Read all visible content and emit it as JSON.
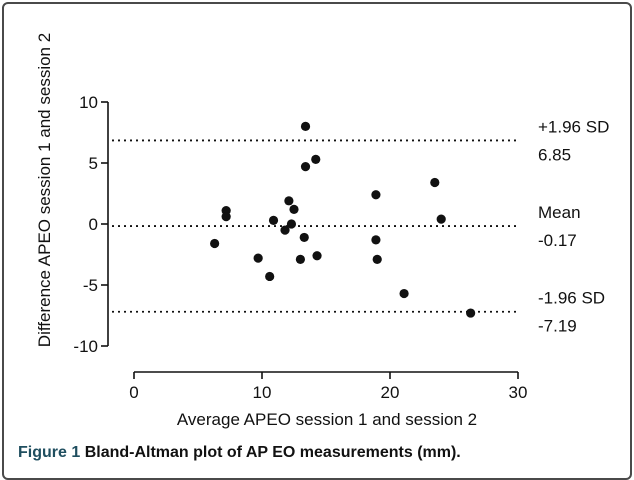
{
  "chart_data": {
    "type": "scatter",
    "xlabel": "Average APEO session 1 and session 2",
    "ylabel": "Difference APEO session 1 and session 2",
    "xlim": [
      0,
      30
    ],
    "ylim": [
      -10,
      10
    ],
    "xticks": [
      0,
      10,
      20,
      30
    ],
    "yticks": [
      -10,
      -5,
      0,
      5,
      10
    ],
    "grid": false,
    "reference_lines": [
      {
        "y": 6.85,
        "label_top": "+1.96 SD",
        "label_bottom": "6.85"
      },
      {
        "y": -0.17,
        "label_top": "Mean",
        "label_bottom": "-0.17"
      },
      {
        "y": -7.19,
        "label_top": "-1.96 SD",
        "label_bottom": "-7.19"
      }
    ],
    "points": [
      {
        "x": 6.3,
        "y": -1.6
      },
      {
        "x": 7.2,
        "y": 1.1
      },
      {
        "x": 7.2,
        "y": 0.6
      },
      {
        "x": 9.7,
        "y": -2.8
      },
      {
        "x": 10.6,
        "y": -4.3
      },
      {
        "x": 10.9,
        "y": 0.3
      },
      {
        "x": 11.8,
        "y": -0.5
      },
      {
        "x": 12.1,
        "y": 1.9
      },
      {
        "x": 12.3,
        "y": 0.0
      },
      {
        "x": 12.5,
        "y": 1.2
      },
      {
        "x": 13.0,
        "y": -2.9
      },
      {
        "x": 13.3,
        "y": -1.1
      },
      {
        "x": 13.4,
        "y": 4.7
      },
      {
        "x": 13.4,
        "y": 8.0
      },
      {
        "x": 14.2,
        "y": 5.3
      },
      {
        "x": 14.3,
        "y": -2.6
      },
      {
        "x": 18.9,
        "y": 2.4
      },
      {
        "x": 18.9,
        "y": -1.3
      },
      {
        "x": 19.0,
        "y": -2.9
      },
      {
        "x": 21.1,
        "y": -5.7
      },
      {
        "x": 23.5,
        "y": 3.4
      },
      {
        "x": 24.0,
        "y": 0.4
      },
      {
        "x": 26.3,
        "y": -7.3
      }
    ]
  },
  "caption": {
    "lead": "Figure 1",
    "text": "Bland-Altman plot of AP EO measurements (mm)."
  }
}
